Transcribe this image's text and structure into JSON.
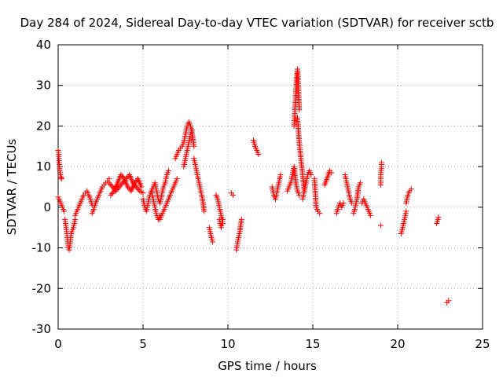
{
  "chart_data": {
    "type": "scatter",
    "title": "Day 284 of 2024, Sidereal Day-to-day VTEC variation (SDTVAR) for receiver sctb",
    "xlabel": "GPS time / hours",
    "ylabel": "SDTVAR / TECUs",
    "xlim": [
      0,
      25
    ],
    "ylim": [
      -30,
      40
    ],
    "xticks": [
      0,
      5,
      10,
      15,
      20,
      25
    ],
    "yticks": [
      -30,
      -20,
      -10,
      0,
      10,
      20,
      30,
      40
    ],
    "xtick_labels": [
      "0",
      "5",
      "10",
      "15",
      "20",
      "25"
    ],
    "ytick_labels": [
      "-30",
      "-20",
      "-10",
      "0",
      "10",
      "20",
      "30",
      "40"
    ],
    "grid": true,
    "marker": "+",
    "color": "#ff0000",
    "series": [
      {
        "name": "SDTVAR",
        "segments": [
          {
            "x": [
              0.0,
              0.02,
              0.04,
              0.06,
              0.08,
              0.1,
              0.12,
              0.14,
              0.16,
              0.18,
              0.2
            ],
            "y": [
              14,
              13.5,
              12.5,
              11,
              10,
              9,
              8.5,
              8,
              7.5,
              7.2,
              7
            ]
          },
          {
            "x": [
              0.0,
              0.05,
              0.1,
              0.15,
              0.2,
              0.25,
              0.3,
              0.35
            ],
            "y": [
              2.5,
              2,
              1.5,
              1,
              0.5,
              0,
              -0.5,
              -1
            ]
          },
          {
            "x": [
              0.4,
              0.45,
              0.5,
              0.55,
              0.6,
              0.65,
              0.7,
              0.75,
              0.8,
              0.85,
              0.9,
              0.95,
              1.0
            ],
            "y": [
              -3,
              -4.5,
              -6,
              -8,
              -10,
              -10.5,
              -9,
              -7,
              -6,
              -5.5,
              -5,
              -4,
              -3
            ]
          },
          {
            "x": [
              1.0,
              1.1,
              1.2,
              1.3,
              1.4,
              1.5,
              1.6,
              1.7,
              1.8,
              1.9,
              2.0
            ],
            "y": [
              -2,
              -1,
              0,
              1,
              2,
              3,
              3.5,
              4,
              3,
              2,
              0.5
            ]
          },
          {
            "x": [
              2.0,
              2.1,
              2.2,
              2.3,
              2.4,
              2.5,
              2.6,
              2.7,
              2.8,
              2.9,
              3.0
            ],
            "y": [
              -1.5,
              -0.5,
              1,
              2,
              3,
              4,
              5,
              5.5,
              6,
              6.5,
              7
            ]
          },
          {
            "x": [
              3.0,
              3.2,
              3.4,
              3.6,
              3.8,
              4.0,
              4.2,
              4.4,
              4.6,
              4.8,
              5.0
            ],
            "y": [
              6,
              5,
              4,
              5,
              6,
              7,
              8,
              6,
              5,
              4,
              3.5
            ]
          },
          {
            "x": [
              3.1,
              3.3,
              3.5,
              3.7,
              3.9,
              4.1,
              4.3,
              4.5,
              4.7,
              4.9
            ],
            "y": [
              3,
              4,
              6,
              8,
              7,
              5,
              4,
              6,
              7,
              5
            ]
          },
          {
            "x": [
              5.0,
              5.1,
              5.2,
              5.3,
              5.4,
              5.5,
              5.6,
              5.7,
              5.8,
              5.9,
              6.0
            ],
            "y": [
              2,
              0,
              -1,
              1,
              3,
              4,
              2,
              0,
              -2,
              -3,
              -2
            ]
          },
          {
            "x": [
              5.5,
              5.6,
              5.7,
              5.8,
              5.9,
              6.0,
              6.1,
              6.2,
              6.3,
              6.4,
              6.5
            ],
            "y": [
              4,
              5,
              6,
              4,
              2,
              1,
              3,
              5,
              6,
              8,
              9
            ]
          },
          {
            "x": [
              6.0,
              6.1,
              6.2,
              6.3,
              6.4,
              6.5,
              6.6,
              6.7,
              6.8,
              6.9,
              7.0
            ],
            "y": [
              -3,
              -2,
              -1,
              0,
              1,
              2,
              3,
              4,
              5,
              6,
              7
            ]
          },
          {
            "x": [
              6.9,
              7.0,
              7.1,
              7.2,
              7.3,
              7.4,
              7.5,
              7.6,
              7.7,
              7.8,
              7.9,
              8.0
            ],
            "y": [
              12,
              13,
              14,
              14.5,
              15,
              16,
              18,
              20,
              21,
              20,
              18,
              15
            ]
          },
          {
            "x": [
              7.4,
              7.5,
              7.6,
              7.7,
              7.8,
              7.9
            ],
            "y": [
              10,
              12,
              14,
              16,
              18,
              19
            ]
          },
          {
            "x": [
              8.0,
              8.1,
              8.2,
              8.3,
              8.4,
              8.5,
              8.6
            ],
            "y": [
              12,
              10,
              8,
              6,
              4,
              2,
              -1
            ]
          },
          {
            "x": [
              8.9,
              9.0,
              9.1
            ],
            "y": [
              -5,
              -7,
              -8.5
            ]
          },
          {
            "x": [
              9.3,
              9.4,
              9.5,
              9.6,
              9.7
            ],
            "y": [
              3,
              2,
              0,
              -2,
              -4
            ]
          },
          {
            "x": [
              9.5,
              9.6,
              9.7
            ],
            "y": [
              -3,
              -5,
              -3
            ]
          },
          {
            "x": [
              10.2,
              10.3
            ],
            "y": [
              3.5,
              3
            ]
          },
          {
            "x": [
              10.5,
              10.6,
              10.7,
              10.8
            ],
            "y": [
              -10.5,
              -8,
              -6,
              -3
            ]
          },
          {
            "x": [
              11.5,
              11.6,
              11.7,
              11.8
            ],
            "y": [
              16.5,
              15,
              14,
              13
            ]
          },
          {
            "x": [
              12.6,
              12.7,
              12.8,
              12.9,
              13.0,
              13.1
            ],
            "y": [
              5,
              3,
              2,
              4,
              6,
              8
            ]
          },
          {
            "x": [
              13.5,
              13.6,
              13.7,
              13.8,
              13.9,
              14.0,
              14.1,
              14.2
            ],
            "y": [
              4,
              5,
              6,
              8,
              10,
              6,
              4,
              3
            ]
          },
          {
            "x": [
              13.9,
              13.95,
              14.0,
              14.05,
              14.1,
              14.15,
              14.2
            ],
            "y": [
              20,
              24,
              28,
              32,
              34,
              30,
              24
            ]
          },
          {
            "x": [
              14.1,
              14.2,
              14.3,
              14.4,
              14.5
            ],
            "y": [
              22,
              16,
              12,
              8,
              4
            ]
          },
          {
            "x": [
              14.4,
              14.5,
              14.6,
              14.7,
              14.8,
              14.9
            ],
            "y": [
              2,
              4,
              6,
              8,
              9,
              8
            ]
          },
          {
            "x": [
              15.1,
              15.2,
              15.3,
              15.4
            ],
            "y": [
              7,
              0,
              -1,
              -1.5
            ]
          },
          {
            "x": [
              15.7,
              16.0,
              16.1
            ],
            "y": [
              5.5,
              9,
              8.5
            ]
          },
          {
            "x": [
              16.4,
              16.5,
              16.6,
              16.7,
              16.8
            ],
            "y": [
              -1.5,
              0,
              1,
              0,
              1
            ]
          },
          {
            "x": [
              16.9,
              17.0,
              17.1,
              17.2,
              17.3
            ],
            "y": [
              8,
              6,
              4,
              2,
              1
            ]
          },
          {
            "x": [
              17.4,
              17.5,
              17.6,
              17.7,
              17.8
            ],
            "y": [
              -1.5,
              0,
              2,
              5,
              6
            ]
          },
          {
            "x": [
              17.9,
              18.0,
              18.1,
              18.2,
              18.3,
              18.4
            ],
            "y": [
              1,
              2,
              1,
              0,
              -1,
              -2
            ]
          },
          {
            "x": [
              19.0,
              19.0,
              19.05,
              19.05
            ],
            "y": [
              5.5,
              8,
              10,
              11
            ]
          },
          {
            "x": [
              19.0
            ],
            "y": [
              -4.5
            ]
          },
          {
            "x": [
              20.2,
              20.3,
              20.4,
              20.5
            ],
            "y": [
              -6.5,
              -5,
              -3,
              -1
            ]
          },
          {
            "x": [
              20.5,
              20.6,
              20.7,
              20.8
            ],
            "y": [
              1,
              3,
              4,
              4.5
            ]
          },
          {
            "x": [
              22.3,
              22.4
            ],
            "y": [
              -4,
              -2.5
            ]
          },
          {
            "x": [
              22.9,
              23.0
            ],
            "y": [
              -23.5,
              -23
            ]
          }
        ]
      }
    ]
  }
}
